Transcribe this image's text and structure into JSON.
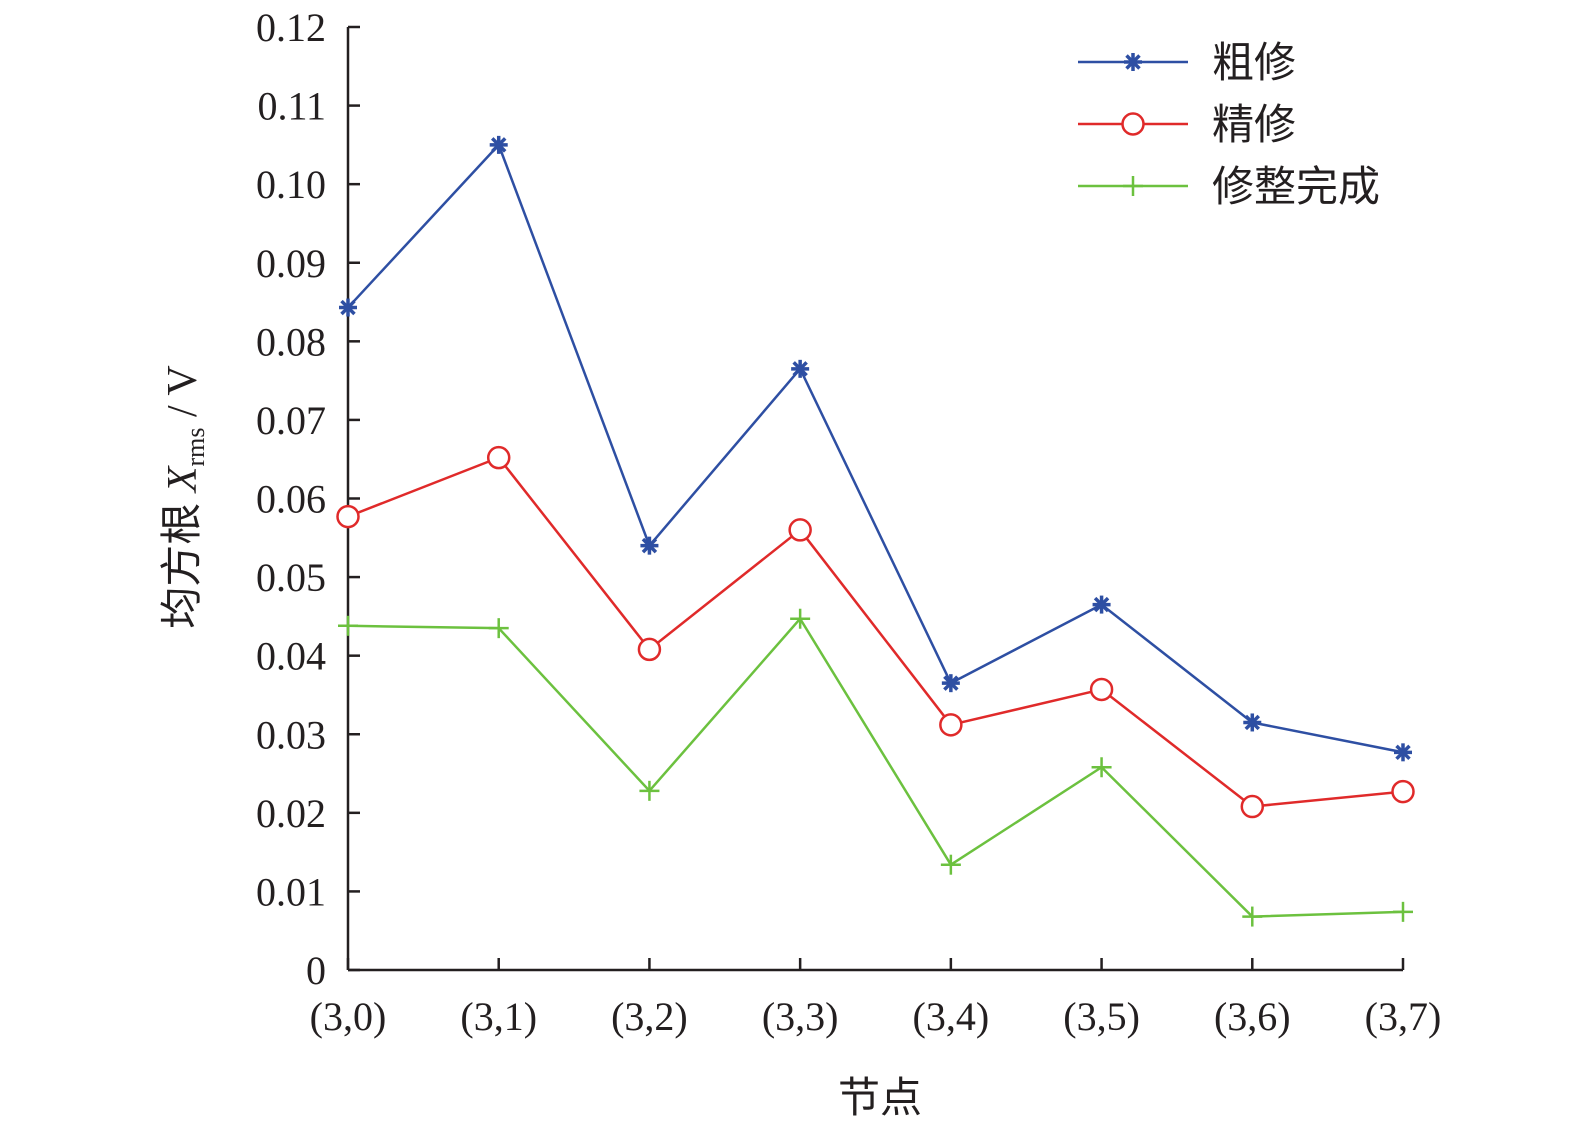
{
  "chart_data": {
    "type": "line",
    "categories": [
      "(3,0)",
      "(3,1)",
      "(3,2)",
      "(3,3)",
      "(3,4)",
      "(3,5)",
      "(3,6)",
      "(3,7)"
    ],
    "series": [
      {
        "name": "粗修",
        "color": "#2e4fa3",
        "marker": "asterisk",
        "values": [
          0.0843,
          0.105,
          0.054,
          0.0765,
          0.0365,
          0.0465,
          0.0315,
          0.0277
        ]
      },
      {
        "name": "精修",
        "color": "#e02a2a",
        "marker": "circle",
        "values": [
          0.0577,
          0.0652,
          0.0408,
          0.056,
          0.0312,
          0.0357,
          0.0208,
          0.0227
        ]
      },
      {
        "name": "修整完成",
        "color": "#6cc13f",
        "marker": "plus",
        "values": [
          0.0438,
          0.0435,
          0.0228,
          0.0447,
          0.0134,
          0.0258,
          0.0068,
          0.0074
        ]
      }
    ],
    "yticks": [
      "0",
      "0.01",
      "0.02",
      "0.03",
      "0.04",
      "0.05",
      "0.06",
      "0.07",
      "0.08",
      "0.09",
      "0.10",
      "0.11",
      "0.12"
    ],
    "ylim": [
      0,
      0.12
    ],
    "xlabel": "节点",
    "ylabel": {
      "main": "均方根 ",
      "symbol": "X",
      "subscript": "rms",
      "unit": " / V"
    },
    "legend_position": "top-right",
    "grid": false
  }
}
